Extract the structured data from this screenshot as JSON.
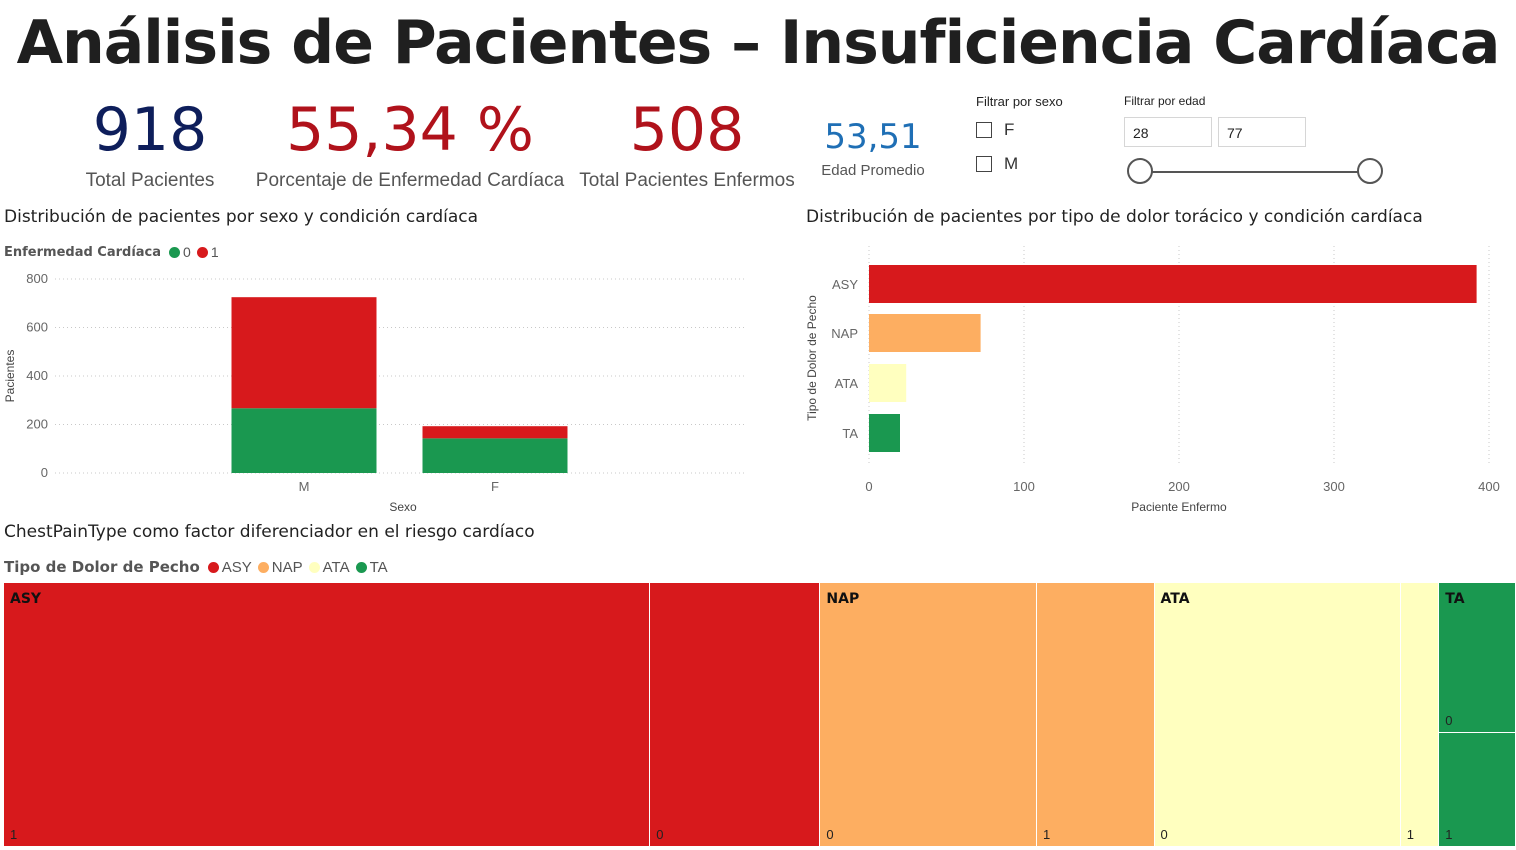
{
  "title": "Análisis de Pacientes – Insuficiencia Cardíaca",
  "kpis": {
    "total_pacientes": {
      "value": "918",
      "label": "Total Pacientes",
      "color": "#0e1e5b"
    },
    "porcentaje": {
      "value": "55,34 %",
      "label": "Porcentaje de Enfermedad Cardíaca",
      "color": "#b0121b"
    },
    "enfermos": {
      "value": "508",
      "label": "Total Pacientes Enfermos",
      "color": "#b0121b"
    },
    "edad": {
      "value": "53,51",
      "label": "Edad Promedio",
      "color": "#1f6fb5"
    }
  },
  "filters": {
    "sexo": {
      "label": "Filtrar por sexo",
      "options": [
        "F",
        "M"
      ]
    },
    "edad": {
      "label": "Filtrar por edad",
      "min": "28",
      "max": "77",
      "min_fraction": 0.0,
      "max_fraction": 1.0
    }
  },
  "colors": {
    "green": "#1a9850",
    "red": "#d7191c",
    "orange": "#fdae61",
    "yellow": "#ffffbf",
    "title_dark": "#1f1f1f"
  },
  "chart_data": [
    {
      "type": "bar",
      "stacked": true,
      "title": "Distribución de pacientes por sexo y condición cardíaca",
      "legend_title": "Enfermedad Cardíaca",
      "categories": [
        "M",
        "F"
      ],
      "series": [
        {
          "name": "0",
          "color": "#1a9850",
          "values": [
            267,
            143
          ]
        },
        {
          "name": "1",
          "color": "#d7191c",
          "values": [
            458,
            50
          ]
        }
      ],
      "xlabel": "Sexo",
      "ylabel": "Pacientes",
      "ylim": [
        0,
        800
      ],
      "yticks": [
        0,
        200,
        400,
        600,
        800
      ],
      "grid": true,
      "legend_position": "top-left"
    },
    {
      "type": "bar",
      "orientation": "horizontal",
      "title": "Distribución de pacientes por tipo de dolor torácico y condición cardíaca",
      "categories": [
        "ASY",
        "NAP",
        "ATA",
        "TA"
      ],
      "values": [
        392,
        72,
        24,
        20
      ],
      "colors": [
        "#d7191c",
        "#fdae61",
        "#ffffbf",
        "#1a9850"
      ],
      "xlabel": "Paciente Enfermo",
      "ylabel": "Tipo de Dolor de Pecho",
      "xlim": [
        0,
        400
      ],
      "xticks": [
        0,
        100,
        200,
        300,
        400
      ],
      "grid": true
    },
    {
      "type": "treemap",
      "title": "ChestPainType como factor diferenciador en el riesgo cardíaco",
      "legend_title": "Tipo de Dolor de Pecho",
      "groups": [
        {
          "name": "ASY",
          "color": "#d7191c",
          "children": [
            {
              "label": "1",
              "value": 392
            },
            {
              "label": "0",
              "value": 104
            }
          ]
        },
        {
          "name": "NAP",
          "color": "#fdae61",
          "children": [
            {
              "label": "0",
              "value": 131
            },
            {
              "label": "1",
              "value": 72
            }
          ]
        },
        {
          "name": "ATA",
          "color": "#ffffbf",
          "children": [
            {
              "label": "0",
              "value": 149
            },
            {
              "label": "1",
              "value": 24
            }
          ]
        },
        {
          "name": "TA",
          "color": "#1a9850",
          "children": [
            {
              "label": "0",
              "value": 26
            },
            {
              "label": "1",
              "value": 20
            }
          ]
        }
      ]
    }
  ]
}
